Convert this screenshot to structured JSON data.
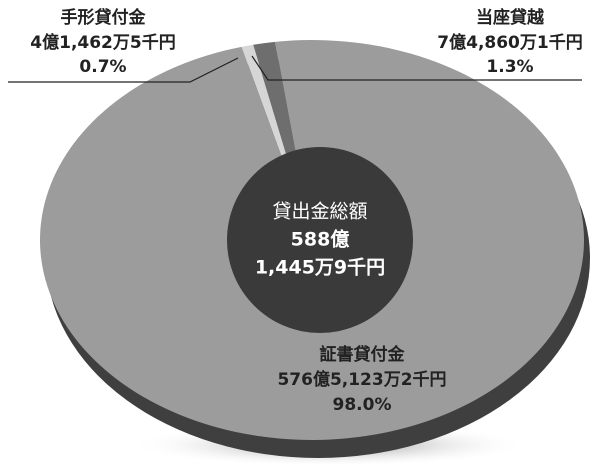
{
  "chart_data": {
    "type": "pie",
    "categories": [
      "手形貸付金",
      "当座貸越",
      "証書貸付金"
    ],
    "amounts": [
      "4億1,462万5千円",
      "7億4,860万1千円",
      "576億5,123万2千円"
    ],
    "values": [
      0.7,
      1.3,
      98.0
    ],
    "value_labels": [
      "0.7%",
      "1.3%",
      "98.0%"
    ],
    "colors": [
      "#d6d6d6",
      "#6e6e6e",
      "#9c9c9c"
    ],
    "center_title": "貸出金総額",
    "center_total": [
      "588億",
      "1,445万9千円"
    ]
  }
}
